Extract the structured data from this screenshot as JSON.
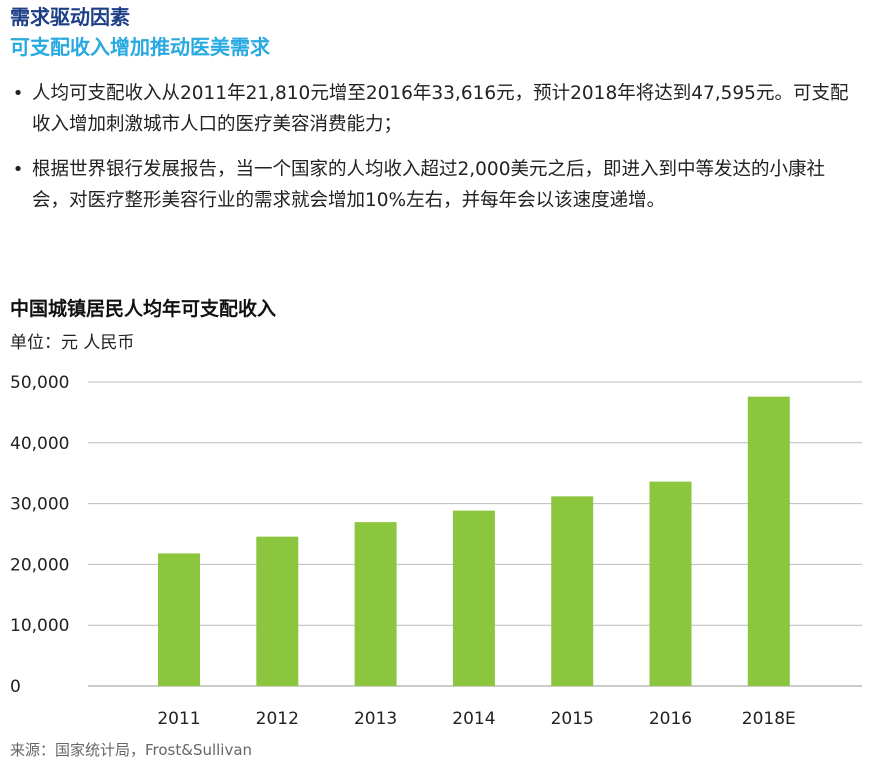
{
  "header": {
    "title": "需求驱动因素",
    "subtitle": "可支配收入增加推动医美需求"
  },
  "bullets": [
    {
      "text": "人均可支配收入从2011年21,810元增至2016年33,616元，预计2018年将达到47,595元。可支配收入增加刺激城市人口的医疗美容消费能力；"
    },
    {
      "text": "根据世界银行发展报告，当一个国家的人均收入超过2,000美元之后，即进入到中等发达的小康社会，对医疗整形美容行业的需求就会增加10%左右，并每年会以该速度递增。"
    }
  ],
  "bullet_symbol": "•",
  "chart": {
    "title": "中国城镇居民人均年可支配收入",
    "unit": "单位：元 人民币"
  },
  "chart_data": {
    "type": "bar",
    "title": "中国城镇居民人均年可支配收入",
    "ylabel": "单位：元 人民币",
    "xlabel": "",
    "categories": [
      "2011",
      "2012",
      "2013",
      "2014",
      "2015",
      "2016",
      "2018E"
    ],
    "values": [
      21810,
      24565,
      26955,
      28844,
      31195,
      33616,
      47595
    ],
    "ylim": [
      0,
      50000
    ],
    "yticks": [
      0,
      10000,
      20000,
      30000,
      40000,
      50000
    ],
    "ytick_labels": [
      "0",
      "10,000",
      "20,000",
      "30,000",
      "40,000",
      "50,000"
    ],
    "grid": true,
    "bar_color": "#8cc63f",
    "grid_color": "#bbbbbb"
  },
  "source": "来源：国家统计局，Frost&Sullivan"
}
